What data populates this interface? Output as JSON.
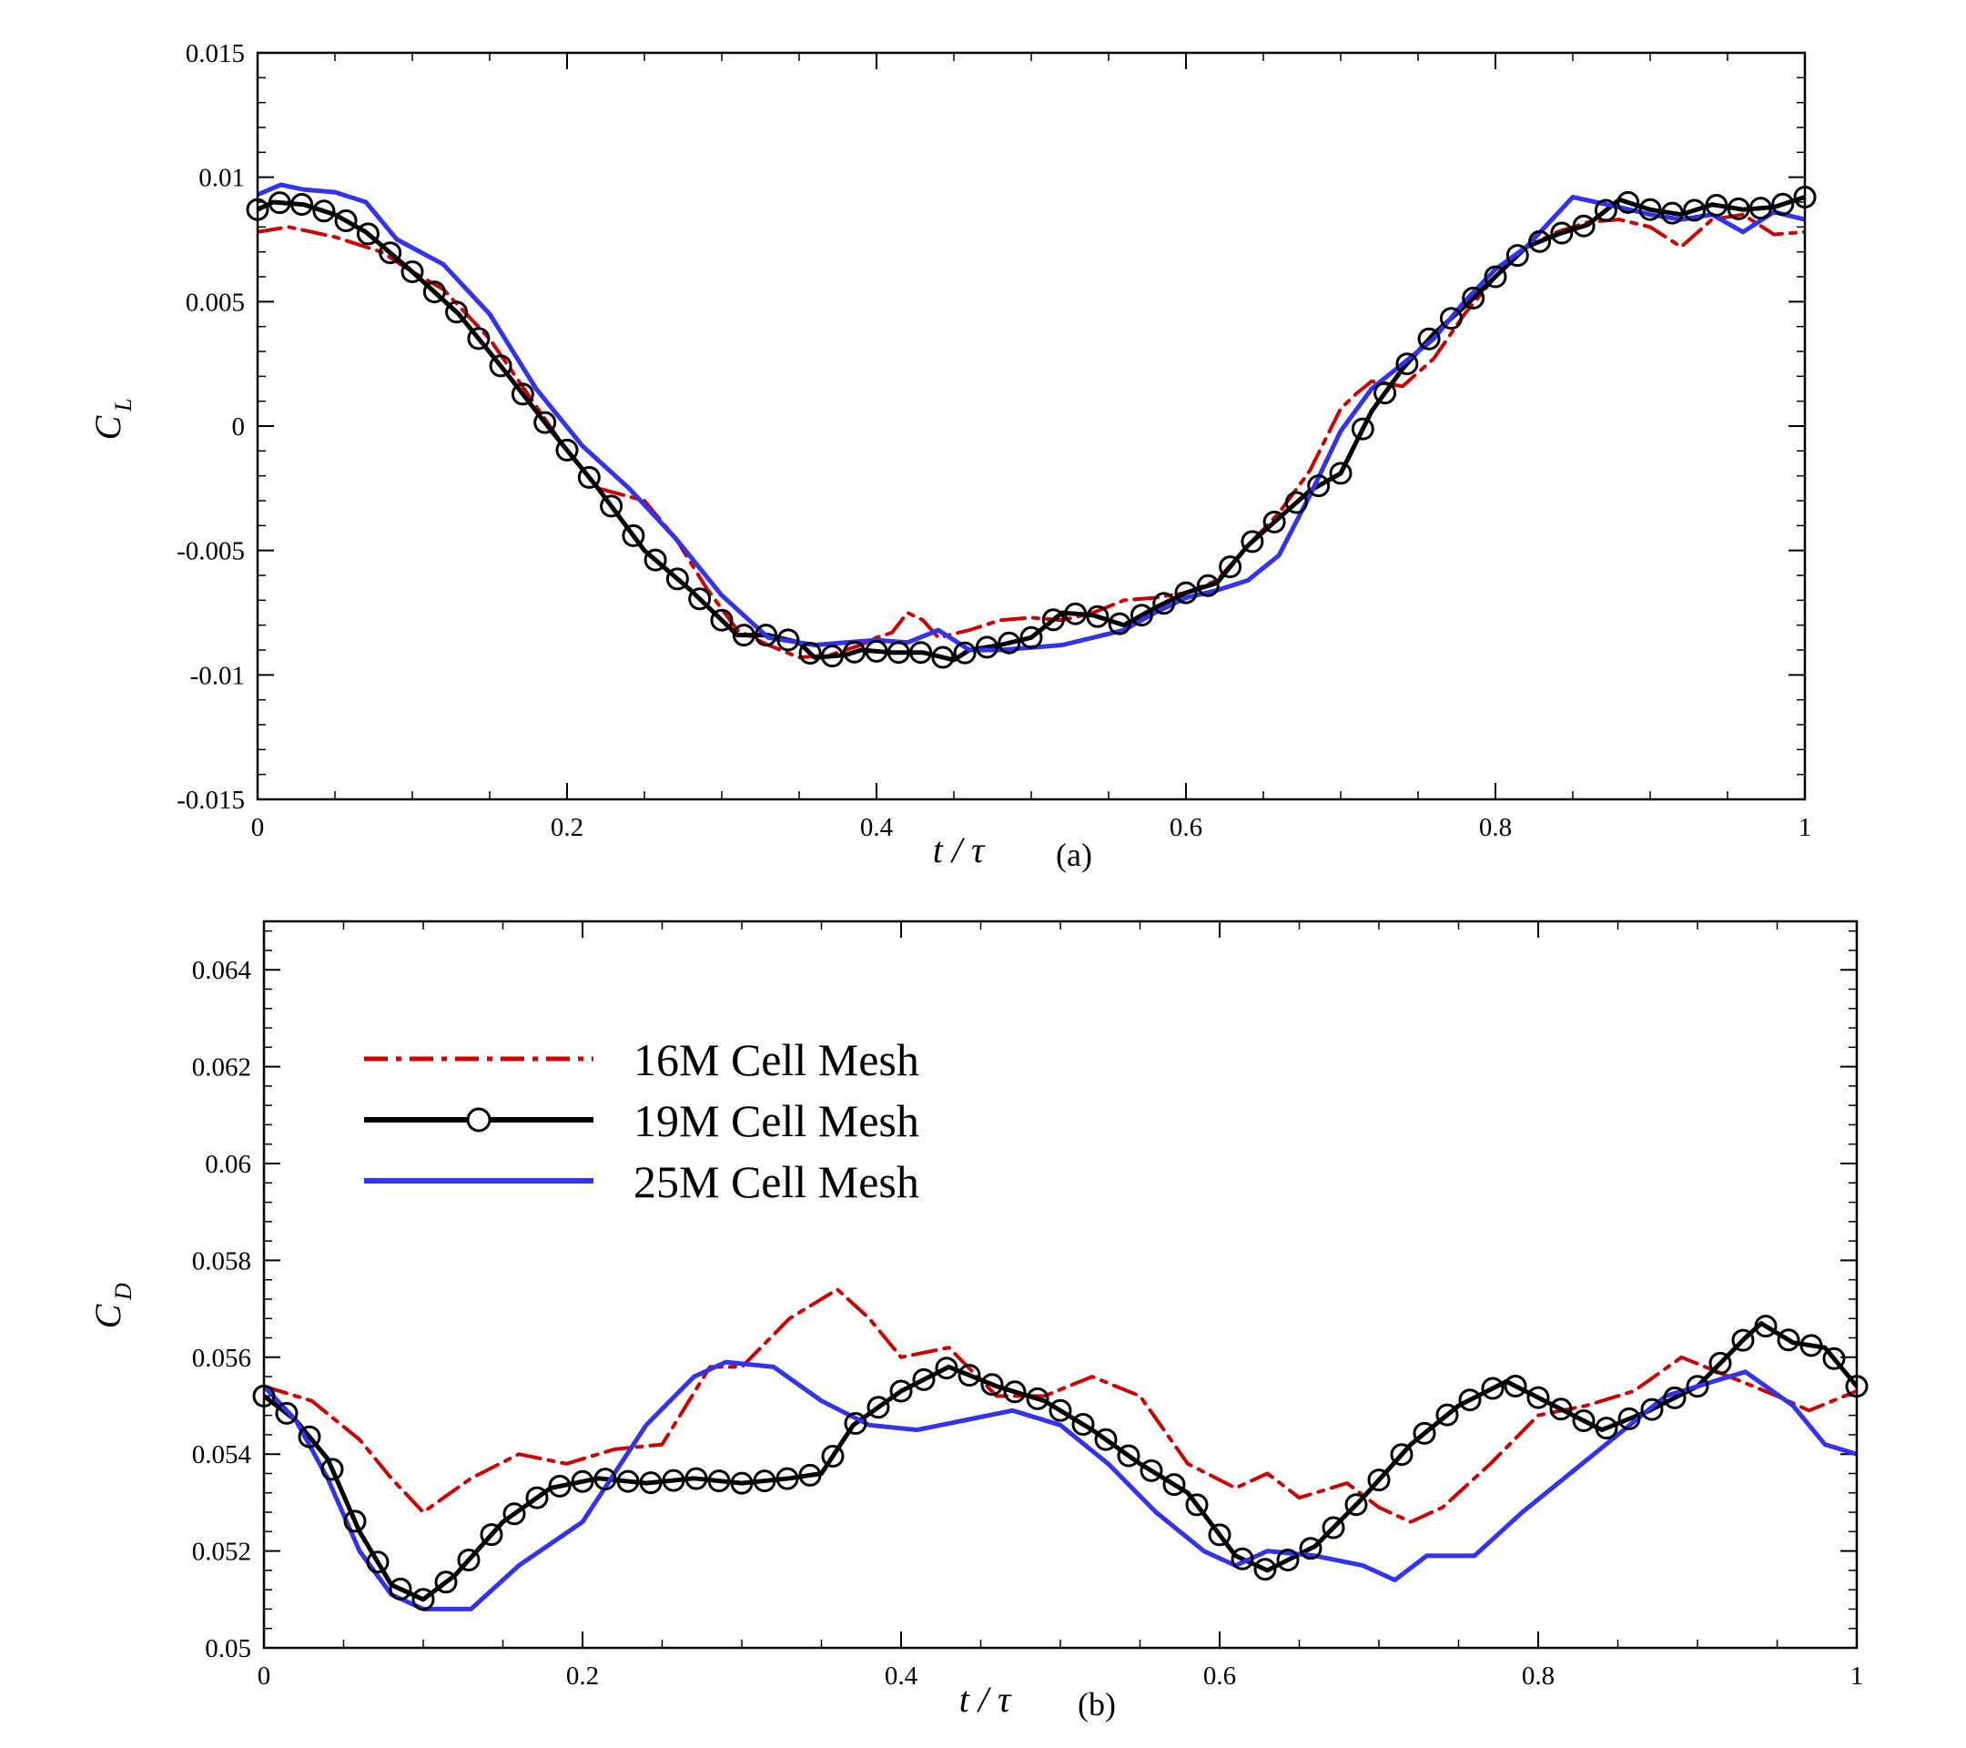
{
  "colors": {
    "mesh16": "#cc0000",
    "mesh19": "#000000",
    "mesh25": "#3333ee",
    "axis": "#000000"
  },
  "legend": [
    {
      "key": "mesh16",
      "label": "16M Cell Mesh",
      "style": "dashdot"
    },
    {
      "key": "mesh19",
      "label": "19M Cell Mesh",
      "style": "solid-circle"
    },
    {
      "key": "mesh25",
      "label": "25M Cell Mesh",
      "style": "solid"
    }
  ],
  "chart_data": [
    {
      "type": "line",
      "panel_label": "(a)",
      "xlabel": "t / τ",
      "ylabel": "C",
      "ylabel_subscript": "L",
      "xlim": [
        0,
        1
      ],
      "ylim": [
        -0.015,
        0.015
      ],
      "xticks": [
        0,
        0.2,
        0.4,
        0.6,
        0.8,
        1
      ],
      "xtick_labels": [
        "0",
        "0.2",
        "0.4",
        "0.6",
        "0.8",
        "1"
      ],
      "yticks": [
        -0.015,
        -0.01,
        -0.005,
        0,
        0.005,
        0.01,
        0.015
      ],
      "ytick_labels": [
        "-0.015",
        "-0.01",
        "-0.005",
        "0",
        "0.005",
        "0.01",
        "0.015"
      ],
      "series": [
        {
          "key": "mesh16",
          "name": "16M Cell Mesh",
          "x": [
            0,
            0.02,
            0.05,
            0.08,
            0.1,
            0.12,
            0.15,
            0.18,
            0.2,
            0.22,
            0.25,
            0.27,
            0.29,
            0.31,
            0.33,
            0.35,
            0.37,
            0.39,
            0.4,
            0.41,
            0.42,
            0.43,
            0.44,
            0.46,
            0.48,
            0.5,
            0.52,
            0.54,
            0.56,
            0.58,
            0.6,
            0.62,
            0.64,
            0.66,
            0.68,
            0.7,
            0.71,
            0.72,
            0.74,
            0.76,
            0.78,
            0.8,
            0.82,
            0.84,
            0.86,
            0.88,
            0.9,
            0.92,
            0.94,
            0.96,
            0.98,
            1.0
          ],
          "y": [
            0.0078,
            0.008,
            0.0076,
            0.007,
            0.0062,
            0.0055,
            0.0035,
            0.0008,
            -0.001,
            -0.0025,
            -0.003,
            -0.0045,
            -0.0065,
            -0.0082,
            -0.0088,
            -0.0093,
            -0.0092,
            -0.0088,
            -0.0085,
            -0.0083,
            -0.0075,
            -0.0078,
            -0.0085,
            -0.0082,
            -0.0078,
            -0.0077,
            -0.0078,
            -0.0075,
            -0.007,
            -0.0069,
            -0.0067,
            -0.0062,
            -0.0048,
            -0.0035,
            -0.0018,
            0.0007,
            0.0013,
            0.0018,
            0.0016,
            0.0027,
            0.0045,
            0.006,
            0.0072,
            0.0078,
            0.0082,
            0.0083,
            0.008,
            0.0072,
            0.0083,
            0.0085,
            0.0077,
            0.0078
          ]
        },
        {
          "key": "mesh19",
          "name": "19M Cell Mesh",
          "x": [
            0,
            0.01,
            0.03,
            0.05,
            0.07,
            0.1,
            0.13,
            0.16,
            0.19,
            0.22,
            0.25,
            0.28,
            0.3,
            0.31,
            0.33,
            0.35,
            0.36,
            0.38,
            0.39,
            0.41,
            0.43,
            0.45,
            0.46,
            0.48,
            0.5,
            0.52,
            0.54,
            0.56,
            0.58,
            0.6,
            0.62,
            0.64,
            0.66,
            0.68,
            0.7,
            0.72,
            0.74,
            0.76,
            0.78,
            0.8,
            0.82,
            0.84,
            0.86,
            0.88,
            0.9,
            0.92,
            0.94,
            0.96,
            0.98,
            1.0
          ],
          "y": [
            0.0087,
            0.009,
            0.0089,
            0.0085,
            0.0078,
            0.0062,
            0.0045,
            0.0022,
            -0.0002,
            -0.0025,
            -0.005,
            -0.0066,
            -0.0078,
            -0.0084,
            -0.0084,
            -0.0087,
            -0.0093,
            -0.0092,
            -0.009,
            -0.0091,
            -0.0091,
            -0.0094,
            -0.009,
            -0.0088,
            -0.0085,
            -0.0075,
            -0.0076,
            -0.008,
            -0.0073,
            -0.0067,
            -0.0063,
            -0.0048,
            -0.0037,
            -0.0026,
            -0.0019,
            0.0006,
            0.0023,
            0.0037,
            0.0048,
            0.006,
            0.0072,
            0.0077,
            0.0081,
            0.0091,
            0.0087,
            0.0085,
            0.0089,
            0.0087,
            0.0088,
            0.0092
          ]
        },
        {
          "key": "mesh25",
          "name": "25M Cell Mesh",
          "x": [
            0,
            0.015,
            0.03,
            0.05,
            0.07,
            0.09,
            0.12,
            0.15,
            0.18,
            0.21,
            0.24,
            0.27,
            0.3,
            0.33,
            0.36,
            0.38,
            0.4,
            0.42,
            0.44,
            0.46,
            0.48,
            0.5,
            0.52,
            0.54,
            0.56,
            0.58,
            0.6,
            0.62,
            0.64,
            0.66,
            0.68,
            0.7,
            0.72,
            0.74,
            0.76,
            0.78,
            0.8,
            0.82,
            0.85,
            0.88,
            0.9,
            0.92,
            0.94,
            0.96,
            0.98,
            1.0
          ],
          "y": [
            0.0093,
            0.0097,
            0.0095,
            0.0094,
            0.009,
            0.0075,
            0.0065,
            0.0045,
            0.0015,
            -0.0008,
            -0.0025,
            -0.0045,
            -0.0068,
            -0.0085,
            -0.0088,
            -0.0087,
            -0.0086,
            -0.0087,
            -0.0082,
            -0.009,
            -0.009,
            -0.0089,
            -0.0088,
            -0.0085,
            -0.0082,
            -0.0075,
            -0.0069,
            -0.0066,
            -0.0062,
            -0.0052,
            -0.0028,
            -0.0002,
            0.0015,
            0.0025,
            0.0035,
            0.005,
            0.0063,
            0.0072,
            0.0092,
            0.0088,
            0.0085,
            0.0083,
            0.0085,
            0.0078,
            0.0086,
            0.0083
          ]
        }
      ]
    },
    {
      "type": "line",
      "panel_label": "(b)",
      "xlabel": "t / τ",
      "ylabel": "C",
      "ylabel_subscript": "D",
      "xlim": [
        0,
        1
      ],
      "ylim": [
        0.05,
        0.065
      ],
      "xticks": [
        0,
        0.2,
        0.4,
        0.6,
        0.8,
        1
      ],
      "xtick_labels": [
        "0",
        "0.2",
        "0.4",
        "0.6",
        "0.8",
        "1"
      ],
      "yticks": [
        0.05,
        0.052,
        0.054,
        0.056,
        0.058,
        0.06,
        0.062,
        0.064
      ],
      "ytick_labels": [
        "0.05",
        "0.052",
        "0.054",
        "0.056",
        "0.058",
        "0.06",
        "0.062",
        "0.064"
      ],
      "series": [
        {
          "key": "mesh16",
          "name": "16M Cell Mesh",
          "x": [
            0,
            0.03,
            0.06,
            0.08,
            0.1,
            0.13,
            0.16,
            0.19,
            0.22,
            0.25,
            0.28,
            0.3,
            0.33,
            0.36,
            0.38,
            0.4,
            0.43,
            0.46,
            0.49,
            0.52,
            0.55,
            0.58,
            0.61,
            0.63,
            0.65,
            0.68,
            0.7,
            0.72,
            0.74,
            0.77,
            0.8,
            0.83,
            0.86,
            0.89,
            0.92,
            0.95,
            0.97,
            1.0
          ],
          "y": [
            0.0554,
            0.0551,
            0.0543,
            0.0535,
            0.0528,
            0.0535,
            0.054,
            0.0538,
            0.0541,
            0.0542,
            0.0558,
            0.0558,
            0.0568,
            0.0574,
            0.0568,
            0.056,
            0.0562,
            0.0552,
            0.0552,
            0.0556,
            0.0552,
            0.0538,
            0.0533,
            0.0536,
            0.0531,
            0.0534,
            0.0529,
            0.0526,
            0.0529,
            0.0538,
            0.0548,
            0.055,
            0.0553,
            0.056,
            0.0556,
            0.0552,
            0.0549,
            0.0553
          ]
        },
        {
          "key": "mesh19",
          "name": "19M Cell Mesh",
          "x": [
            0,
            0.02,
            0.04,
            0.06,
            0.08,
            0.1,
            0.12,
            0.15,
            0.18,
            0.21,
            0.24,
            0.27,
            0.3,
            0.33,
            0.35,
            0.37,
            0.4,
            0.43,
            0.46,
            0.49,
            0.52,
            0.55,
            0.58,
            0.61,
            0.63,
            0.66,
            0.69,
            0.72,
            0.75,
            0.78,
            0.81,
            0.84,
            0.87,
            0.9,
            0.93,
            0.94,
            0.96,
            0.98,
            1.0
          ],
          "y": [
            0.0552,
            0.0547,
            0.0539,
            0.0524,
            0.0513,
            0.051,
            0.0515,
            0.0526,
            0.0533,
            0.0535,
            0.0534,
            0.0535,
            0.0534,
            0.0535,
            0.0536,
            0.0546,
            0.0553,
            0.0558,
            0.0554,
            0.0551,
            0.0545,
            0.0538,
            0.0532,
            0.0519,
            0.0516,
            0.0521,
            0.0531,
            0.0542,
            0.055,
            0.0555,
            0.055,
            0.0545,
            0.0549,
            0.0554,
            0.0564,
            0.0567,
            0.0563,
            0.0562,
            0.0554
          ]
        },
        {
          "key": "mesh25",
          "name": "25M Cell Mesh",
          "x": [
            0,
            0.02,
            0.04,
            0.06,
            0.08,
            0.1,
            0.13,
            0.16,
            0.2,
            0.24,
            0.27,
            0.29,
            0.32,
            0.35,
            0.38,
            0.41,
            0.44,
            0.47,
            0.5,
            0.53,
            0.56,
            0.59,
            0.61,
            0.63,
            0.66,
            0.69,
            0.71,
            0.73,
            0.76,
            0.79,
            0.82,
            0.85,
            0.88,
            0.91,
            0.93,
            0.96,
            0.98,
            1.0
          ],
          "y": [
            0.0554,
            0.0547,
            0.0535,
            0.052,
            0.0511,
            0.0508,
            0.0508,
            0.0517,
            0.0526,
            0.0546,
            0.0556,
            0.0559,
            0.0558,
            0.0551,
            0.0546,
            0.0545,
            0.0547,
            0.0549,
            0.0546,
            0.0538,
            0.0528,
            0.052,
            0.0517,
            0.052,
            0.0519,
            0.0517,
            0.0514,
            0.0519,
            0.0519,
            0.0528,
            0.0536,
            0.0544,
            0.0552,
            0.0555,
            0.0557,
            0.055,
            0.0542,
            0.054
          ]
        }
      ]
    }
  ]
}
